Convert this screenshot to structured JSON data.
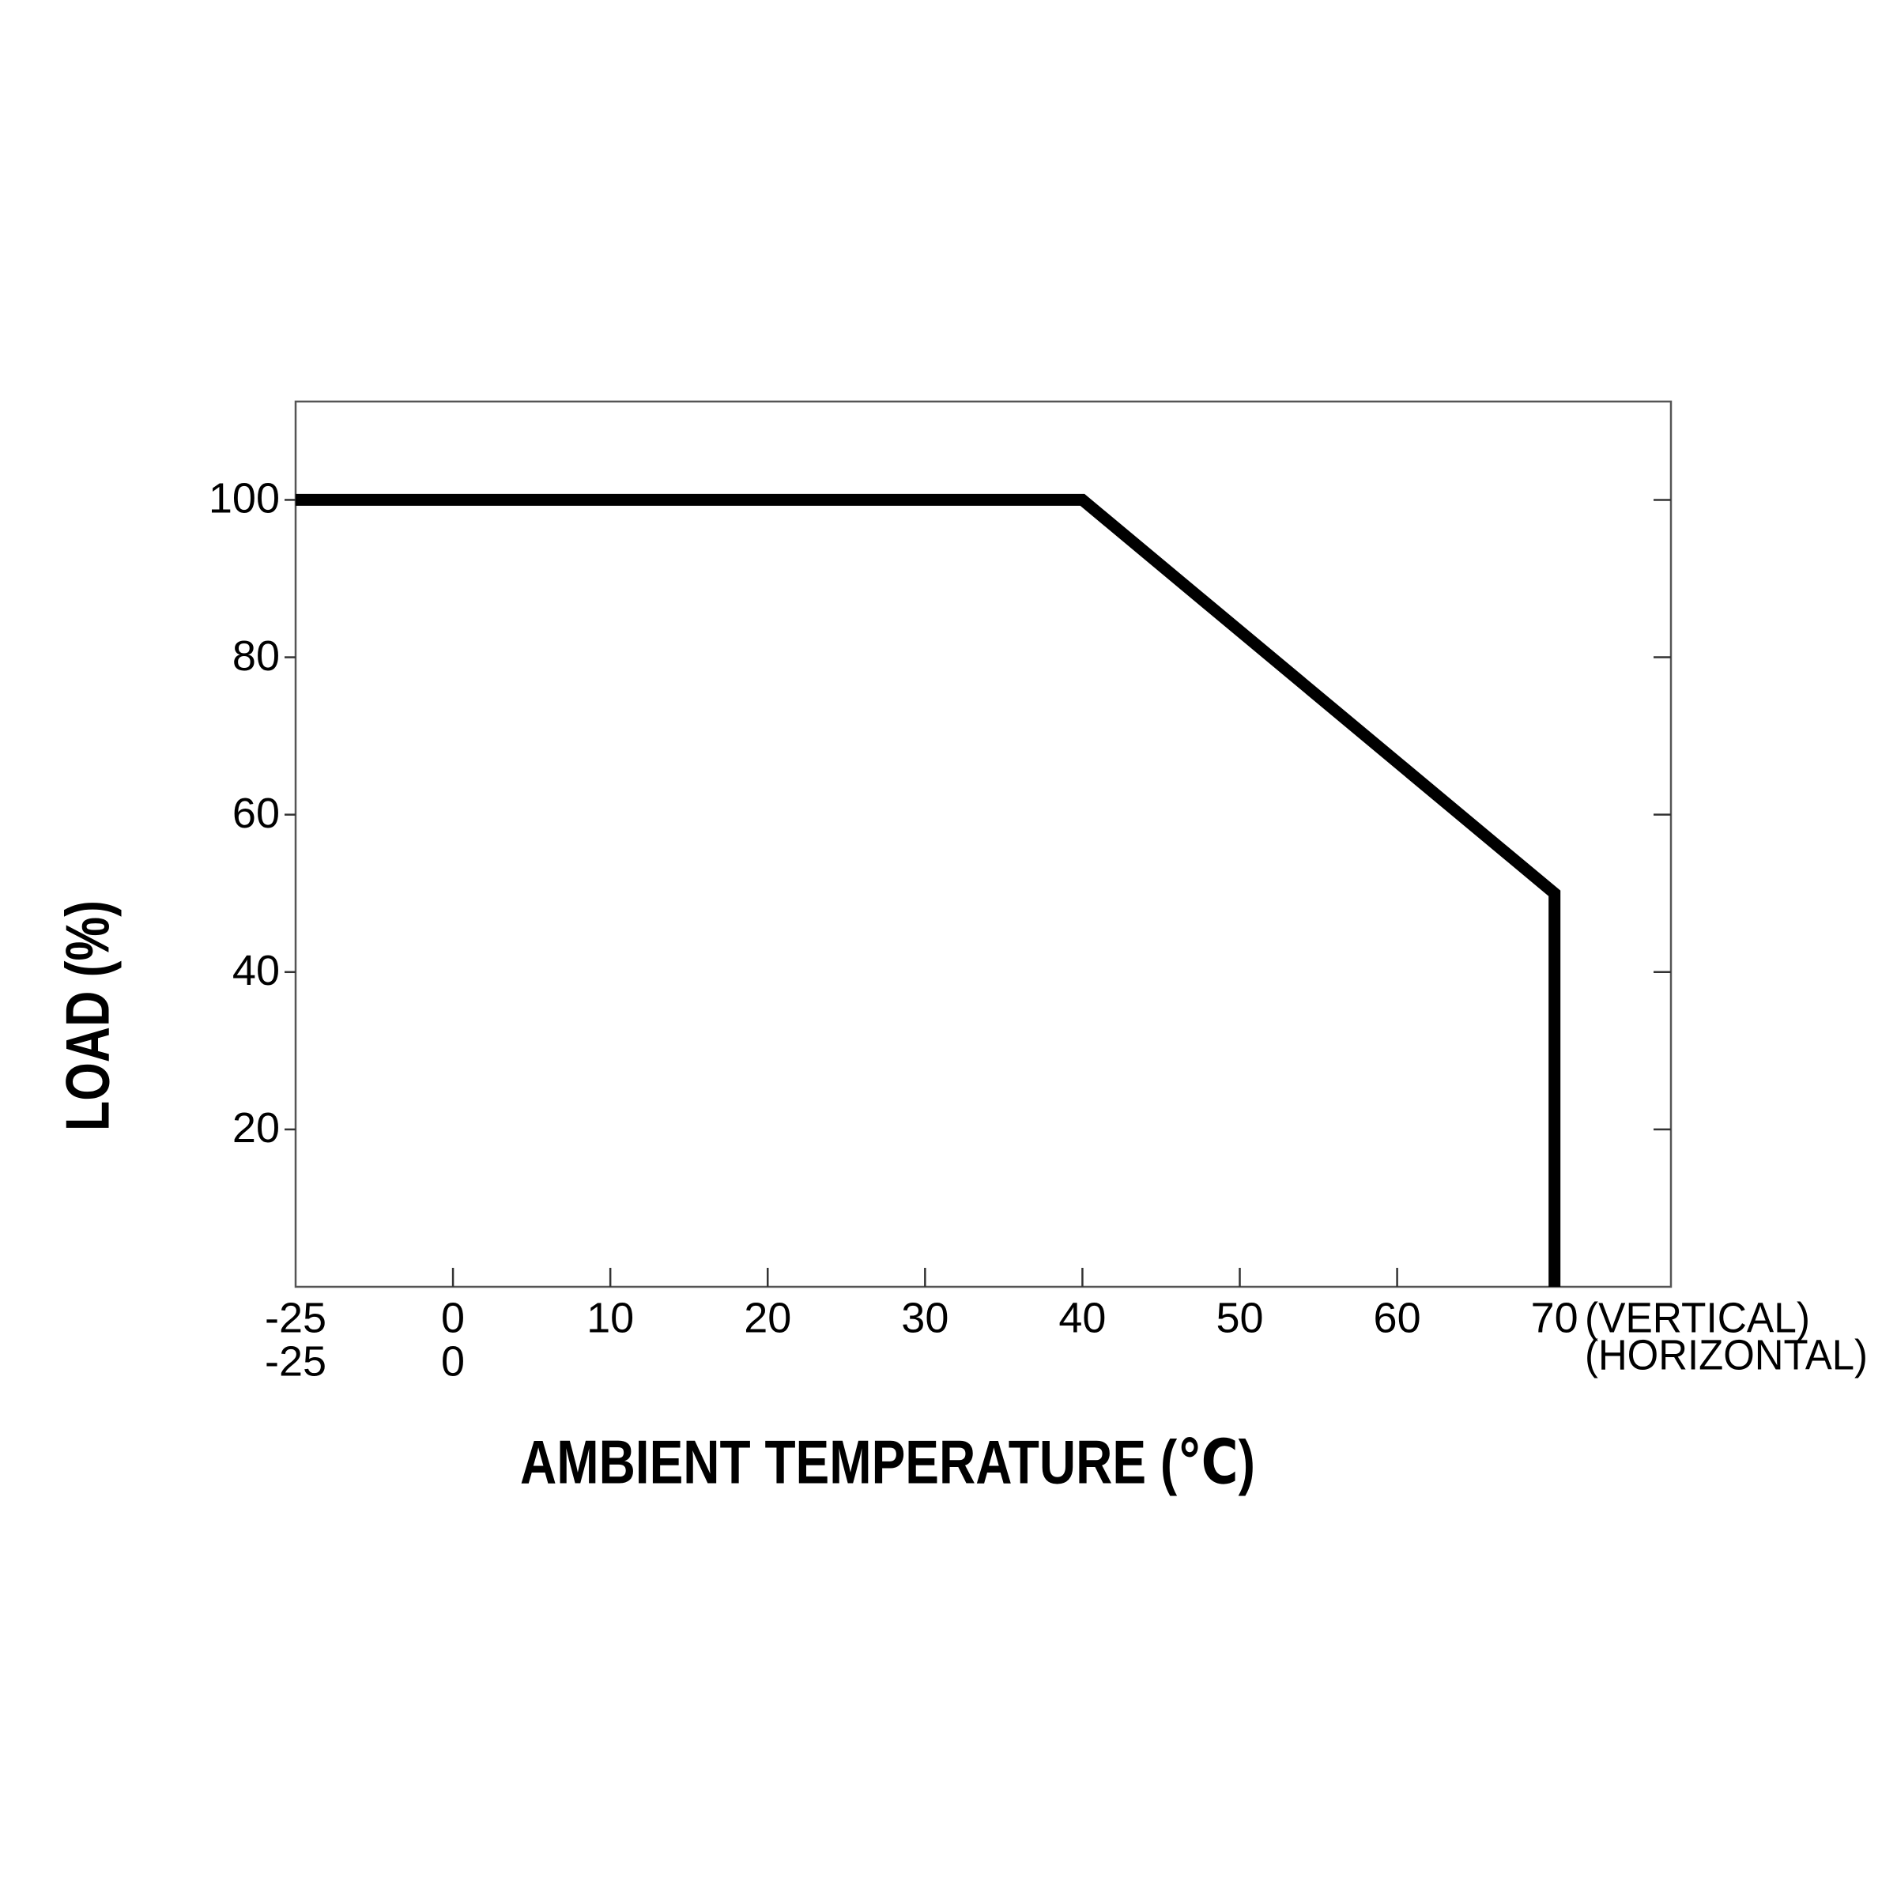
{
  "chart_data": {
    "type": "line",
    "x_label": "AMBIENT TEMPERATURE (℃)",
    "y_label": "LOAD (%)",
    "series": [
      {
        "x": [
          -25,
          40,
          70,
          70
        ],
        "values": [
          100,
          100,
          50,
          0
        ],
        "color": "#000000"
      }
    ],
    "xlim": [
      -25,
      77.4
    ],
    "xticks": [
      -25,
      0,
      10,
      20,
      30,
      40,
      50,
      60,
      70
    ],
    "xticks_row_label": "(VERTICAL)",
    "xticks_second_row": [
      -25,
      0
    ],
    "xticks_second_row_label": "(HORIZONTAL)",
    "ylim": [
      0,
      112.5
    ],
    "yticks": [
      20,
      40,
      60,
      80,
      100
    ],
    "grid": false
  }
}
